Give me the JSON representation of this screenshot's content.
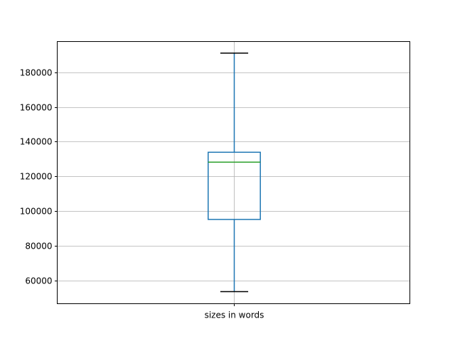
{
  "chart_data": {
    "type": "box",
    "title": "",
    "xlabel": "",
    "ylabel": "",
    "categories": [
      "sizes in words"
    ],
    "boxes": [
      {
        "name": "sizes in words",
        "whisker_low": 53600,
        "q1": 95200,
        "median": 128200,
        "q3": 133900,
        "whisker_high": 191000
      }
    ],
    "ylim": [
      46650,
      197670
    ],
    "yticks": [
      60000,
      80000,
      100000,
      120000,
      140000,
      160000,
      180000
    ],
    "ytick_labels": [
      "60000",
      "80000",
      "100000",
      "120000",
      "140000",
      "160000",
      "180000"
    ],
    "grid": true,
    "colors": {
      "box": "#1f77b4",
      "median": "#2ca02c",
      "caps": "#000000",
      "grid": "#b0b0b0"
    }
  }
}
